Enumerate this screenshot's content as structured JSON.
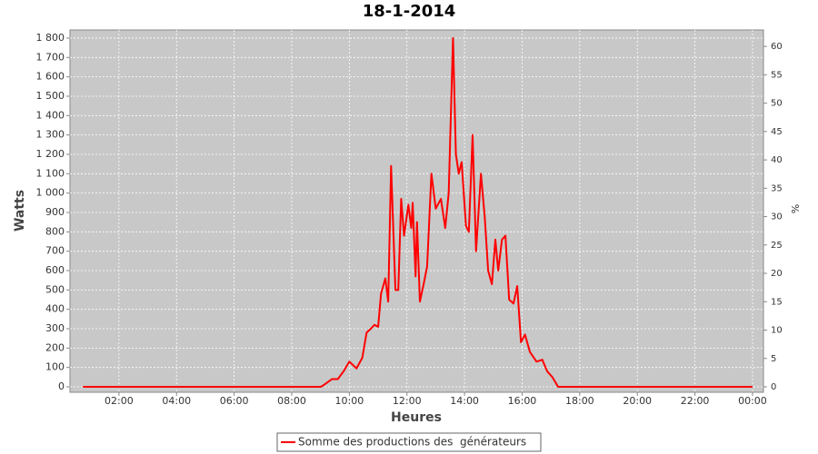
{
  "chart_data": {
    "type": "line",
    "title": "18-1-2014",
    "x_label": "Heures",
    "y_label": "Watts",
    "y2_label": "%",
    "xlim": [
      0.3,
      24.38
    ],
    "xticks": [
      {
        "value": 2,
        "label": "02:00"
      },
      {
        "value": 4,
        "label": "04:00"
      },
      {
        "value": 6,
        "label": "06:00"
      },
      {
        "value": 8,
        "label": "08:00"
      },
      {
        "value": 10,
        "label": "10:00"
      },
      {
        "value": 12,
        "label": "12:00"
      },
      {
        "value": 14,
        "label": "14:00"
      },
      {
        "value": 16,
        "label": "16:00"
      },
      {
        "value": 18,
        "label": "18:00"
      },
      {
        "value": 20,
        "label": "20:00"
      },
      {
        "value": 22,
        "label": "22:00"
      },
      {
        "value": 24,
        "label": "00:00"
      }
    ],
    "ylim": [
      -28,
      1842
    ],
    "yticks": [
      0,
      100,
      200,
      300,
      400,
      500,
      600,
      700,
      800,
      900,
      {
        "value": 1000,
        "label": "1 000"
      },
      {
        "value": 1100,
        "label": "1 100"
      },
      {
        "value": 1200,
        "label": "1 200"
      },
      {
        "value": 1300,
        "label": "1 300"
      },
      {
        "value": 1400,
        "label": "1 400"
      },
      {
        "value": 1500,
        "label": "1 500"
      },
      {
        "value": 1600,
        "label": "1 600"
      },
      {
        "value": 1700,
        "label": "1 700"
      },
      {
        "value": 1800,
        "label": "1 800"
      }
    ],
    "y2lim": [
      -0.96,
      62.9
    ],
    "y2ticks": [
      0,
      5,
      10,
      15,
      20,
      25,
      30,
      35,
      40,
      45,
      50,
      55,
      60
    ],
    "grid": true,
    "x": [
      0.75,
      2,
      4,
      6,
      8,
      9,
      9.07,
      9.4,
      9.6,
      9.8,
      10.0,
      10.25,
      10.45,
      10.6,
      10.75,
      10.87,
      11.0,
      11.1,
      11.25,
      11.35,
      11.45,
      11.6,
      11.7,
      11.8,
      11.9,
      12.05,
      12.15,
      12.2,
      12.3,
      12.35,
      12.45,
      12.58,
      12.7,
      12.85,
      13.0,
      13.18,
      13.33,
      13.45,
      13.6,
      13.7,
      13.8,
      13.9,
      14.05,
      14.15,
      14.28,
      14.4,
      14.57,
      14.7,
      14.82,
      14.95,
      15.07,
      15.17,
      15.3,
      15.42,
      15.55,
      15.7,
      15.83,
      15.96,
      16.1,
      16.27,
      16.5,
      16.7,
      16.87,
      17.05,
      17.25,
      17.5,
      20,
      22,
      24
    ],
    "series": [
      {
        "name": "Somme des productions des  générateurs",
        "color": "#ff0000",
        "values": [
          0,
          0,
          0,
          0,
          0,
          0,
          5,
          40,
          40,
          80,
          130,
          95,
          150,
          280,
          300,
          320,
          310,
          480,
          560,
          440,
          1140,
          500,
          500,
          970,
          780,
          940,
          820,
          950,
          570,
          850,
          440,
          530,
          620,
          1100,
          920,
          970,
          820,
          1000,
          1800,
          1200,
          1100,
          1160,
          830,
          800,
          1300,
          700,
          1100,
          880,
          600,
          530,
          760,
          600,
          760,
          780,
          450,
          430,
          520,
          230,
          270,
          180,
          130,
          140,
          80,
          50,
          0,
          0,
          0,
          0,
          0
        ]
      }
    ],
    "legend": "bottom"
  }
}
